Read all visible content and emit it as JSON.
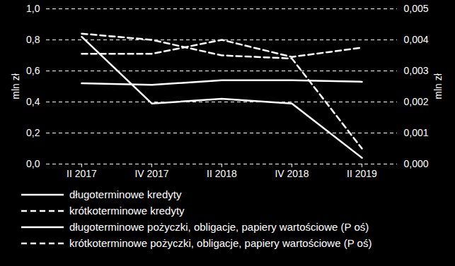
{
  "chart_data": {
    "type": "line",
    "categories": [
      "II 2017",
      "IV 2017",
      "II 2018",
      "IV 2018",
      "II 2019"
    ],
    "ylabel": "mln zł",
    "y2label": "mln zł",
    "ylim": [
      0,
      1
    ],
    "yticks": [
      {
        "value": 0,
        "label": "0,0"
      },
      {
        "value": 0.2,
        "label": "0,2"
      },
      {
        "value": 0.4,
        "label": "0,4"
      },
      {
        "value": 0.6,
        "label": "0,6"
      },
      {
        "value": 0.8,
        "label": "0,8"
      },
      {
        "value": 1,
        "label": "1,0"
      }
    ],
    "y2lim": [
      0,
      0.005
    ],
    "y2ticks": [
      {
        "value": 0,
        "label": "0,000"
      },
      {
        "value": 0.001,
        "label": "0,001"
      },
      {
        "value": 0.002,
        "label": "0,002"
      },
      {
        "value": 0.003,
        "label": "0,003"
      },
      {
        "value": 0.004,
        "label": "0,004"
      },
      {
        "value": 0.005,
        "label": "0,005"
      }
    ],
    "grid": true,
    "legend": "bottom",
    "series": [
      {
        "name": "długoterminowe kredyty",
        "color": "#ffffff",
        "line_style": "solid",
        "values": [
          0.52,
          0.51,
          0.54,
          0.54,
          0.53
        ]
      },
      {
        "name": "krótkoterminowe kredyty",
        "color": "#ffffff",
        "line_style": "dashed",
        "values": [
          0.71,
          0.71,
          0.8,
          0.69,
          0.75
        ]
      },
      {
        "name": "długoterminowe pożyczki, obligacje, papiery wartościowe (P oś)",
        "color": "#ffffff",
        "line_style": "solid",
        "axis": "y2",
        "values": [
          0.0041,
          0.00195,
          0.0021,
          0.00195,
          0.0002
        ]
      },
      {
        "name": "krótkoterminowe pożyczki, obligacje, papiery wartościowe (P oś)",
        "color": "#ffffff",
        "line_style": "dashed",
        "axis": "y2",
        "values": [
          0.0042,
          0.004,
          0.0035,
          0.0034,
          0.0005
        ]
      }
    ]
  }
}
